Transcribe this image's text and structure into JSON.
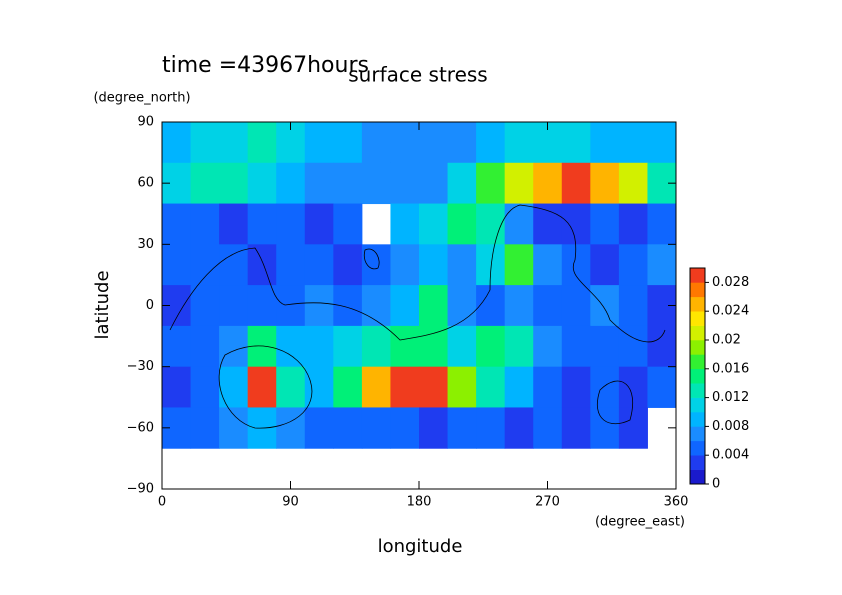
{
  "chart_data": {
    "type": "contour",
    "title": "surface stress",
    "annotation": "time =43967hours",
    "xlabel": "longitude",
    "xunit": "(degree_east)",
    "ylabel": "latitude",
    "yunit": "(degree_north)",
    "xlim": [
      0,
      360
    ],
    "xticks": [
      0,
      90,
      180,
      270,
      360
    ],
    "ylim": [
      -90,
      90
    ],
    "yticks": [
      {
        "value": -90,
        "label": "−90"
      },
      {
        "value": -60,
        "label": "−60"
      },
      {
        "value": -30,
        "label": "−30"
      },
      0,
      30,
      60,
      90
    ],
    "z": [
      [
        0.008,
        0.01,
        0.01,
        0.012,
        0.01,
        0.008,
        0.008,
        0.006,
        0.006,
        0.006,
        0.006,
        0.008,
        0.01,
        0.01,
        0.01,
        0.008,
        0.008,
        0.008
      ],
      [
        0.01,
        0.012,
        0.012,
        0.01,
        0.008,
        0.006,
        0.006,
        0.006,
        0.006,
        0.006,
        0.01,
        0.016,
        0.02,
        0.024,
        0.03,
        0.024,
        0.02,
        0.012
      ],
      [
        0.004,
        0.004,
        0.002,
        0.004,
        0.004,
        0.002,
        0.004,
        null,
        0.008,
        0.01,
        0.014,
        0.012,
        0.006,
        0.002,
        0.002,
        0.004,
        0.002,
        0.004
      ],
      [
        0.004,
        0.004,
        0.004,
        0.002,
        0.004,
        0.004,
        0.002,
        0.004,
        0.006,
        0.008,
        0.006,
        0.01,
        0.016,
        0.006,
        0.004,
        0.002,
        0.004,
        0.006
      ],
      [
        0.002,
        0.004,
        0.004,
        0.004,
        0.004,
        0.006,
        0.004,
        0.006,
        0.008,
        0.014,
        0.006,
        0.004,
        0.006,
        0.004,
        0.004,
        0.006,
        0.004,
        0.002
      ],
      [
        0.004,
        0.004,
        0.006,
        0.014,
        0.008,
        0.008,
        0.01,
        0.012,
        0.014,
        0.014,
        0.01,
        0.014,
        0.012,
        0.006,
        0.004,
        0.004,
        0.004,
        0.002
      ],
      [
        0.002,
        0.004,
        0.008,
        0.03,
        0.012,
        0.008,
        0.014,
        0.024,
        0.03,
        0.03,
        0.018,
        0.012,
        0.008,
        0.004,
        0.002,
        0.004,
        0.002,
        0.004
      ],
      [
        0.004,
        0.004,
        0.006,
        0.008,
        0.006,
        0.004,
        0.004,
        0.004,
        0.004,
        0.002,
        0.004,
        0.004,
        0.002,
        0.004,
        0.002,
        0.004,
        0.002,
        null
      ],
      [
        null,
        null,
        null,
        null,
        null,
        null,
        null,
        null,
        null,
        null,
        null,
        null,
        null,
        null,
        null,
        null,
        null,
        null
      ]
    ],
    "colors": [
      "#1a1acc",
      "#1f3cf0",
      "#0f66ff",
      "#1a8cff",
      "#00b4ff",
      "#00d2e6",
      "#00e6b4",
      "#00f078",
      "#32f032",
      "#8cf000",
      "#d2f000",
      "#ffe600",
      "#ffb400",
      "#ff7800",
      "#f03c1e"
    ],
    "cbarlim": [
      0,
      0.03
    ],
    "cbarticks": [
      0,
      0.004,
      0.008,
      0.012,
      0.016,
      0.02,
      0.024,
      0.028
    ]
  }
}
